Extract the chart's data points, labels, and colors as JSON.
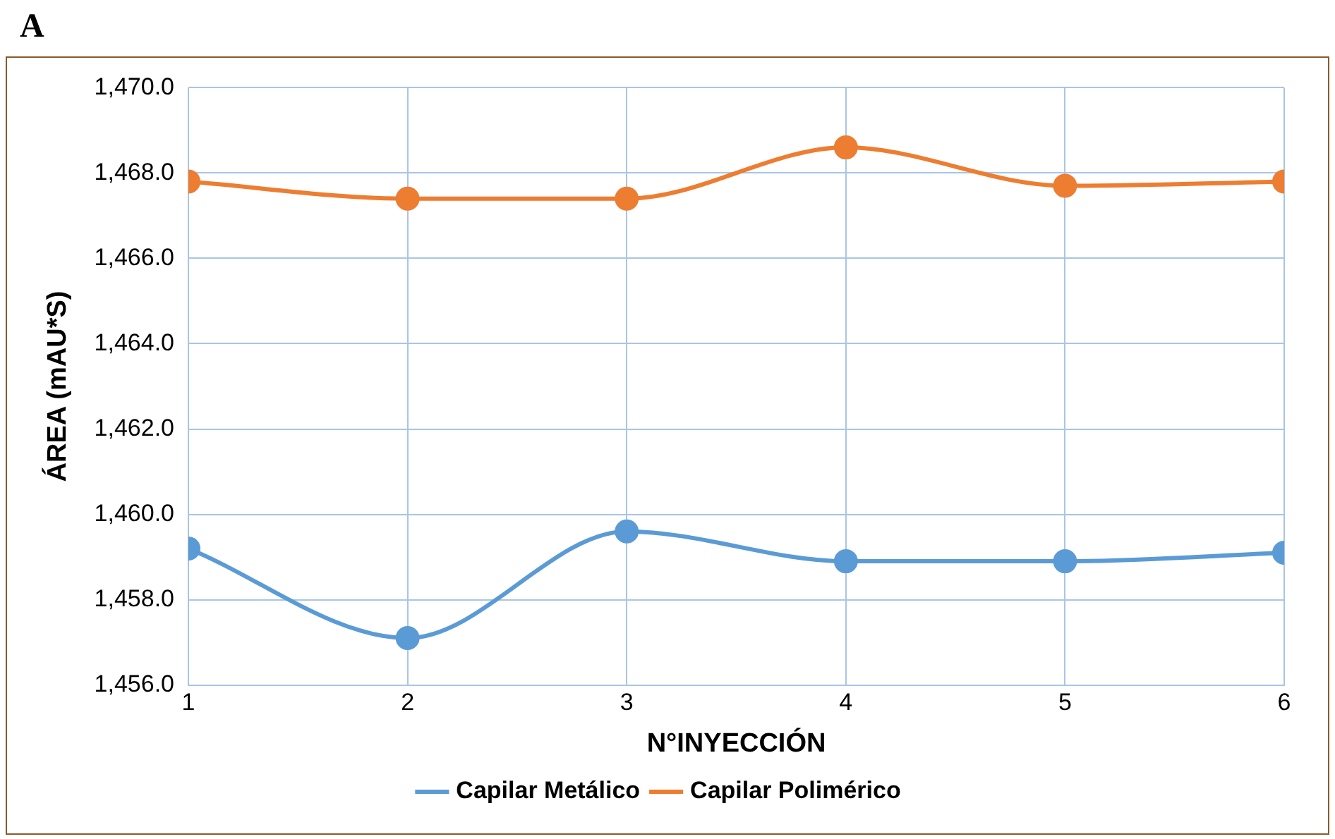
{
  "chart_data": {
    "type": "line",
    "xlabel": "N°INYECCIÓN",
    "ylabel": "ÁREA (mAU*S)",
    "annotations": [
      "A"
    ],
    "x": [
      1,
      2,
      3,
      4,
      5,
      6
    ],
    "series": [
      {
        "name": "Capilar Metálico",
        "color": "#5b9bd5",
        "values": [
          1459.2,
          1457.1,
          1459.6,
          1458.9,
          1458.9,
          1459.1
        ]
      },
      {
        "name": "Capilar Polimérico",
        "color": "#ed7d31",
        "values": [
          1467.8,
          1467.4,
          1467.4,
          1468.6,
          1467.7,
          1467.8
        ]
      }
    ],
    "xlim": [
      1,
      6
    ],
    "xticks": [
      1,
      2,
      3,
      4,
      5,
      6
    ],
    "ylim": [
      1456,
      1470
    ],
    "yticks": [
      {
        "value": 1456,
        "label": "1,456.0"
      },
      {
        "value": 1458,
        "label": "1,458.0"
      },
      {
        "value": 1460,
        "label": "1,460.0"
      },
      {
        "value": 1462,
        "label": "1,462.0"
      },
      {
        "value": 1464,
        "label": "1,464.0"
      },
      {
        "value": 1466,
        "label": "1,466.0"
      },
      {
        "value": 1468,
        "label": "1,468.0"
      },
      {
        "value": 1470,
        "label": "1,470.0"
      }
    ],
    "grid": true,
    "legend": "bottom",
    "marker": "circle",
    "line_style": "solid"
  }
}
